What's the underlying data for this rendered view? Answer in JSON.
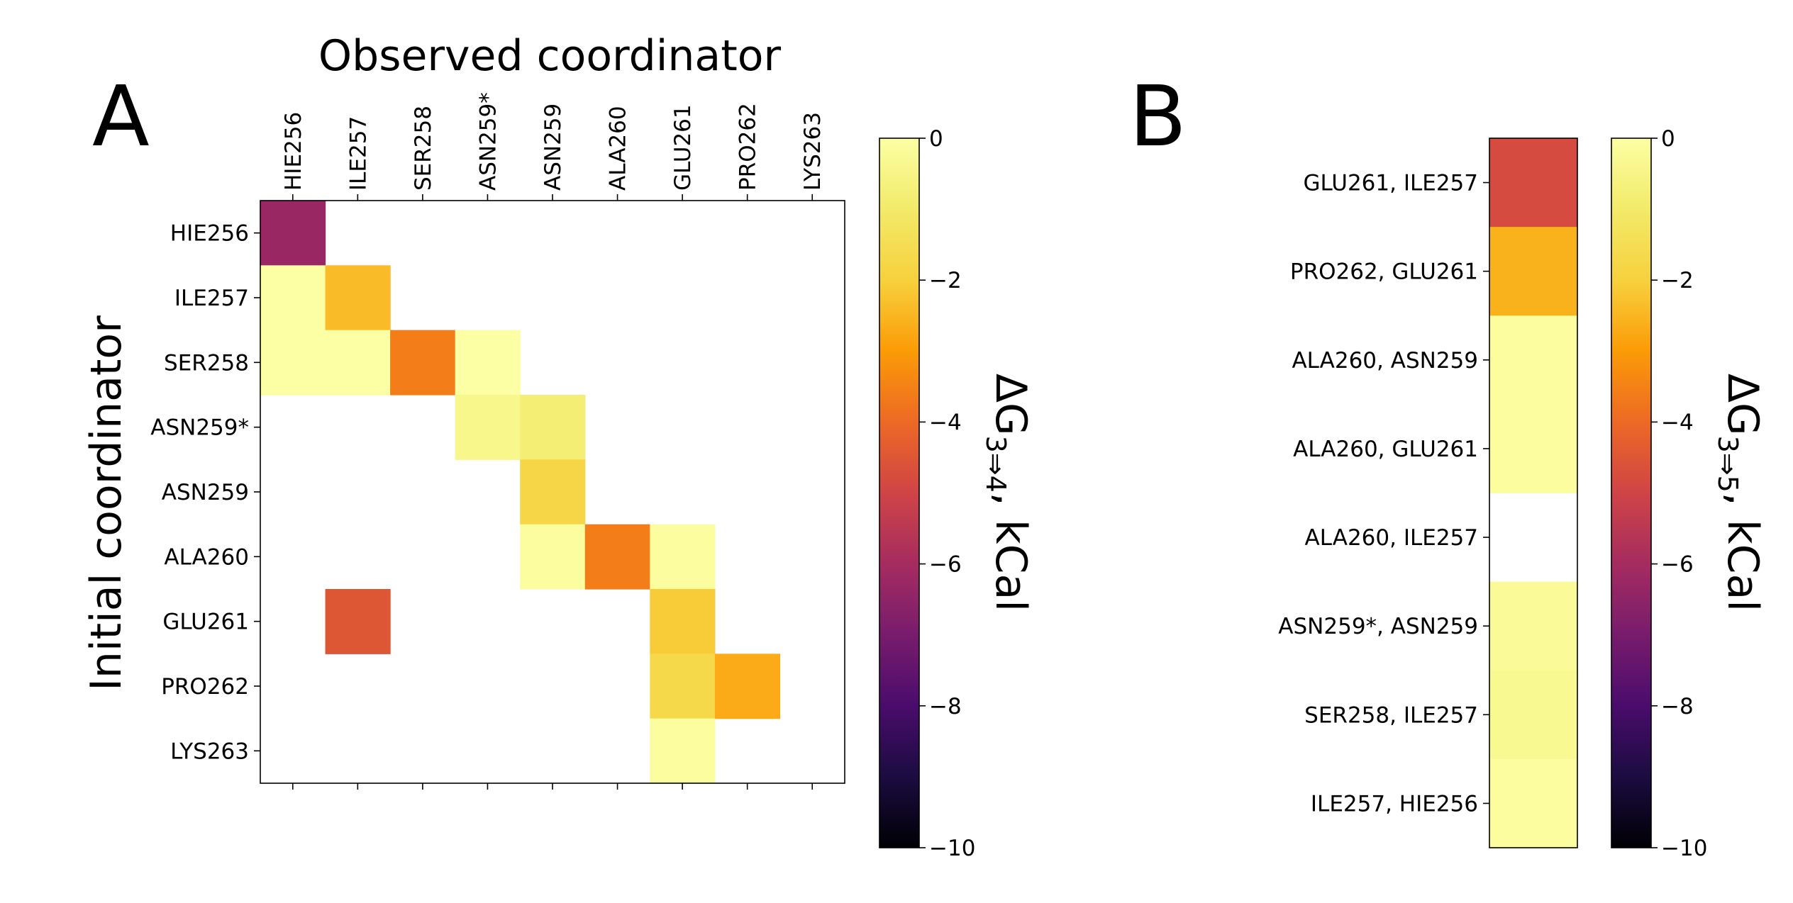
{
  "chart_data": [
    {
      "type": "heatmap",
      "panel_label": "A",
      "title": "Observed coordinator",
      "xlabel": "Observed coordinator",
      "ylabel": "Initial coordinator",
      "x_categories": [
        "HIE256",
        "ILE257",
        "SER258",
        "ASN259*",
        "ASN259",
        "ALA260",
        "GLU261",
        "PRO262",
        "LYS263"
      ],
      "y_categories": [
        "HIE256",
        "ILE257",
        "SER258",
        "ASN259*",
        "ASN259",
        "ALA260",
        "GLU261",
        "PRO262",
        "LYS263"
      ],
      "cells": [
        {
          "row": "HIE256",
          "col": "HIE256",
          "value": -6.3
        },
        {
          "row": "ILE257",
          "col": "HIE256",
          "value": 0
        },
        {
          "row": "ILE257",
          "col": "ILE257",
          "value": -2.4
        },
        {
          "row": "SER258",
          "col": "HIE256",
          "value": 0
        },
        {
          "row": "SER258",
          "col": "ILE257",
          "value": 0
        },
        {
          "row": "SER258",
          "col": "SER258",
          "value": -3.6
        },
        {
          "row": "SER258",
          "col": "ASN259*",
          "value": 0
        },
        {
          "row": "ASN259*",
          "col": "ASN259*",
          "value": -0.4
        },
        {
          "row": "ASN259*",
          "col": "ASN259",
          "value": -0.8
        },
        {
          "row": "ASN259",
          "col": "ASN259",
          "value": -1.8
        },
        {
          "row": "ALA260",
          "col": "ASN259",
          "value": -0.1
        },
        {
          "row": "ALA260",
          "col": "ALA260",
          "value": -3.6
        },
        {
          "row": "ALA260",
          "col": "GLU261",
          "value": -0.1
        },
        {
          "row": "GLU261",
          "col": "ILE257",
          "value": -4.5
        },
        {
          "row": "GLU261",
          "col": "GLU261",
          "value": -2.1
        },
        {
          "row": "PRO262",
          "col": "GLU261",
          "value": -1.7
        },
        {
          "row": "PRO262",
          "col": "PRO262",
          "value": -2.7
        },
        {
          "row": "LYS263",
          "col": "GLU261",
          "value": -0.1
        }
      ],
      "colorbar": {
        "label": "ΔG3⇒4, kCal",
        "label_main": "ΔG",
        "label_sub": "3⇒4",
        "label_tail": ", kCal",
        "range": [
          -10,
          0
        ],
        "ticks": [
          0,
          -2,
          -4,
          -6,
          -8,
          -10
        ],
        "tick_labels": [
          "0",
          "−2",
          "−4",
          "−6",
          "−8",
          "−10"
        ],
        "colormap": "inferno"
      }
    },
    {
      "type": "heatmap",
      "panel_label": "B",
      "categories": [
        "GLU261, ILE257",
        "PRO262, GLU261",
        "ALA260, ASN259",
        "ALA260, GLU261",
        "ALA260, ILE257",
        "ASN259*, ASN259",
        "SER258, ILE257",
        "ILE257, HIE256"
      ],
      "values": [
        -4.8,
        -2.6,
        -0.1,
        -0.1,
        null,
        -0.2,
        -0.3,
        -0.1
      ],
      "colorbar": {
        "label": "ΔG3⇒5, kCal",
        "label_main": "ΔG",
        "label_sub": "3⇒5",
        "label_tail": ", kCal",
        "range": [
          -10,
          0
        ],
        "ticks": [
          0,
          -2,
          -4,
          -6,
          -8,
          -10
        ],
        "tick_labels": [
          "0",
          "−2",
          "−4",
          "−6",
          "−8",
          "−10"
        ],
        "colormap": "inferno"
      }
    }
  ]
}
